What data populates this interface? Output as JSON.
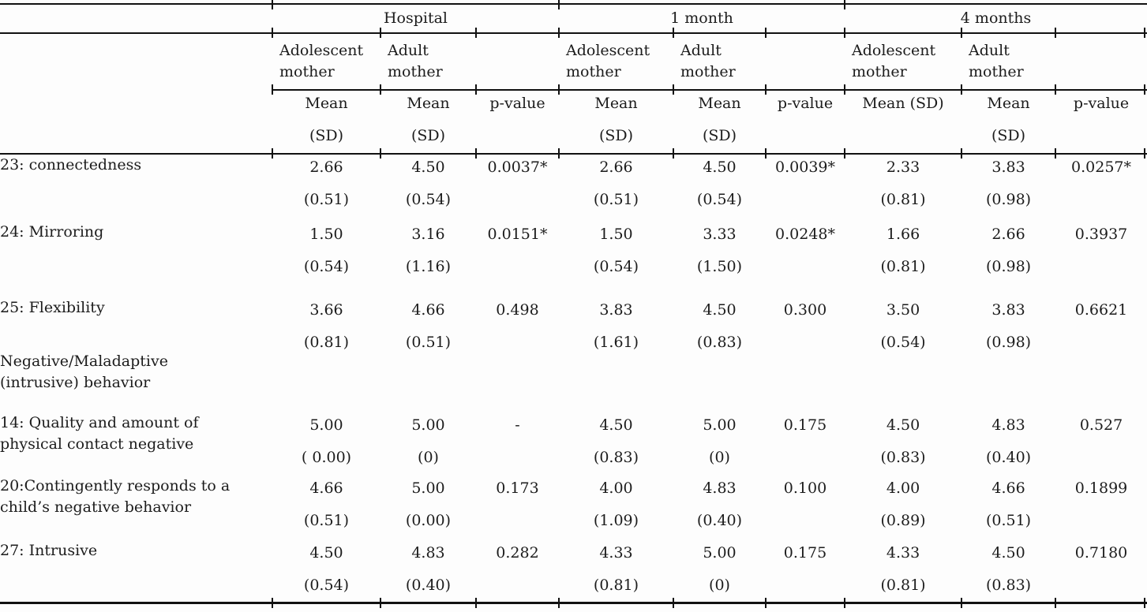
{
  "table": {
    "period_groups": [
      {
        "label": "Hospital"
      },
      {
        "label": "1 month"
      },
      {
        "label": "4 months"
      }
    ],
    "columns": [
      {
        "group": "Hospital",
        "header": "Adolescent mother",
        "stat_line1": "Mean",
        "stat_line2": "(SD)"
      },
      {
        "group": "Hospital",
        "header": "Adult mother",
        "stat_line1": "Mean",
        "stat_line2": "(SD)"
      },
      {
        "group": "Hospital",
        "header": "",
        "stat_line1": "p-value",
        "stat_line2": ""
      },
      {
        "group": "1 month",
        "header": "Adolescent mother",
        "stat_line1": "Mean",
        "stat_line2": "(SD)"
      },
      {
        "group": "1 month",
        "header": "Adult mother",
        "stat_line1": "Mean",
        "stat_line2": "(SD)"
      },
      {
        "group": "1 month",
        "header": "",
        "stat_line1": "p-value",
        "stat_line2": ""
      },
      {
        "group": "4 months",
        "header": "Adolescent mother",
        "stat_line1": "Mean (SD)",
        "stat_line2": ""
      },
      {
        "group": "4 months",
        "header": "Adult mother",
        "stat_line1": "Mean",
        "stat_line2": "(SD)"
      },
      {
        "group": "4 months",
        "header": "",
        "stat_line1": "p-value",
        "stat_line2": ""
      }
    ],
    "rows": [
      {
        "type": "data",
        "label_lines": [
          "23: connectedness"
        ],
        "cells": [
          [
            "2.66",
            "(0.51)"
          ],
          [
            "4.50",
            "(0.54)"
          ],
          [
            "0.0037*",
            ""
          ],
          [
            "2.66",
            "(0.51)"
          ],
          [
            "4.50",
            "(0.54)"
          ],
          [
            "0.0039*",
            ""
          ],
          [
            "2.33",
            "(0.81)"
          ],
          [
            "3.83",
            "(0.98)"
          ],
          [
            "0.0257*",
            ""
          ]
        ]
      },
      {
        "type": "data",
        "label_lines": [
          "24: Mirroring"
        ],
        "cells": [
          [
            "1.50",
            "(0.54)"
          ],
          [
            "3.16",
            "(1.16)"
          ],
          [
            "0.0151*",
            ""
          ],
          [
            "1.50",
            "(0.54)"
          ],
          [
            "3.33",
            "(1.50)"
          ],
          [
            "0.0248*",
            ""
          ],
          [
            "1.66",
            "(0.81)"
          ],
          [
            "2.66",
            "(0.98)"
          ],
          [
            "0.3937",
            ""
          ]
        ]
      },
      {
        "type": "data",
        "label_lines": [
          "25: Flexibility"
        ],
        "cells": [
          [
            "3.66",
            "(0.81)"
          ],
          [
            "4.66",
            "(0.51)"
          ],
          [
            "0.498",
            ""
          ],
          [
            "3.83",
            "(1.61)"
          ],
          [
            "4.50",
            "(0.83)"
          ],
          [
            "0.300",
            ""
          ],
          [
            "3.50",
            "(0.54)"
          ],
          [
            "3.83",
            "(0.98)"
          ],
          [
            "0.6621",
            ""
          ]
        ]
      },
      {
        "type": "section",
        "label_lines": [
          "Negative/Maladaptive",
          "(intrusive) behavior"
        ],
        "cells": []
      },
      {
        "type": "data",
        "label_lines": [
          "14: Quality and amount of",
          "physical contact negative"
        ],
        "cells": [
          [
            "5.00",
            "( 0.00)"
          ],
          [
            "5.00",
            "(0)"
          ],
          [
            "-",
            ""
          ],
          [
            "4.50",
            "(0.83)"
          ],
          [
            "5.00",
            "(0)"
          ],
          [
            "0.175",
            ""
          ],
          [
            "4.50",
            "(0.83)"
          ],
          [
            "4.83",
            "(0.40)"
          ],
          [
            "0.527",
            ""
          ]
        ]
      },
      {
        "type": "data",
        "label_lines": [
          "20:Contingently responds to a",
          "child’s negative behavior"
        ],
        "cells": [
          [
            "4.66",
            "(0.51)"
          ],
          [
            "5.00",
            "(0.00)"
          ],
          [
            "0.173",
            ""
          ],
          [
            "4.00",
            "(1.09)"
          ],
          [
            "4.83",
            "(0.40)"
          ],
          [
            "0.100",
            ""
          ],
          [
            "4.00",
            "(0.89)"
          ],
          [
            "4.66",
            "(0.51)"
          ],
          [
            "0.1899",
            ""
          ]
        ]
      },
      {
        "type": "data",
        "label_lines": [
          "27: Intrusive"
        ],
        "cells": [
          [
            "4.50",
            "(0.54)"
          ],
          [
            "4.83",
            "(0.40)"
          ],
          [
            "0.282",
            ""
          ],
          [
            "4.33",
            "(0.81)"
          ],
          [
            "5.00",
            "(0)"
          ],
          [
            "0.175",
            ""
          ],
          [
            "4.33",
            "(0.81)"
          ],
          [
            "4.50",
            "(0.83)"
          ],
          [
            "0.7180",
            ""
          ]
        ]
      }
    ]
  },
  "colors": {
    "rule": "#111111",
    "text": "#1c1c1c",
    "background": "#fdfdfd"
  }
}
